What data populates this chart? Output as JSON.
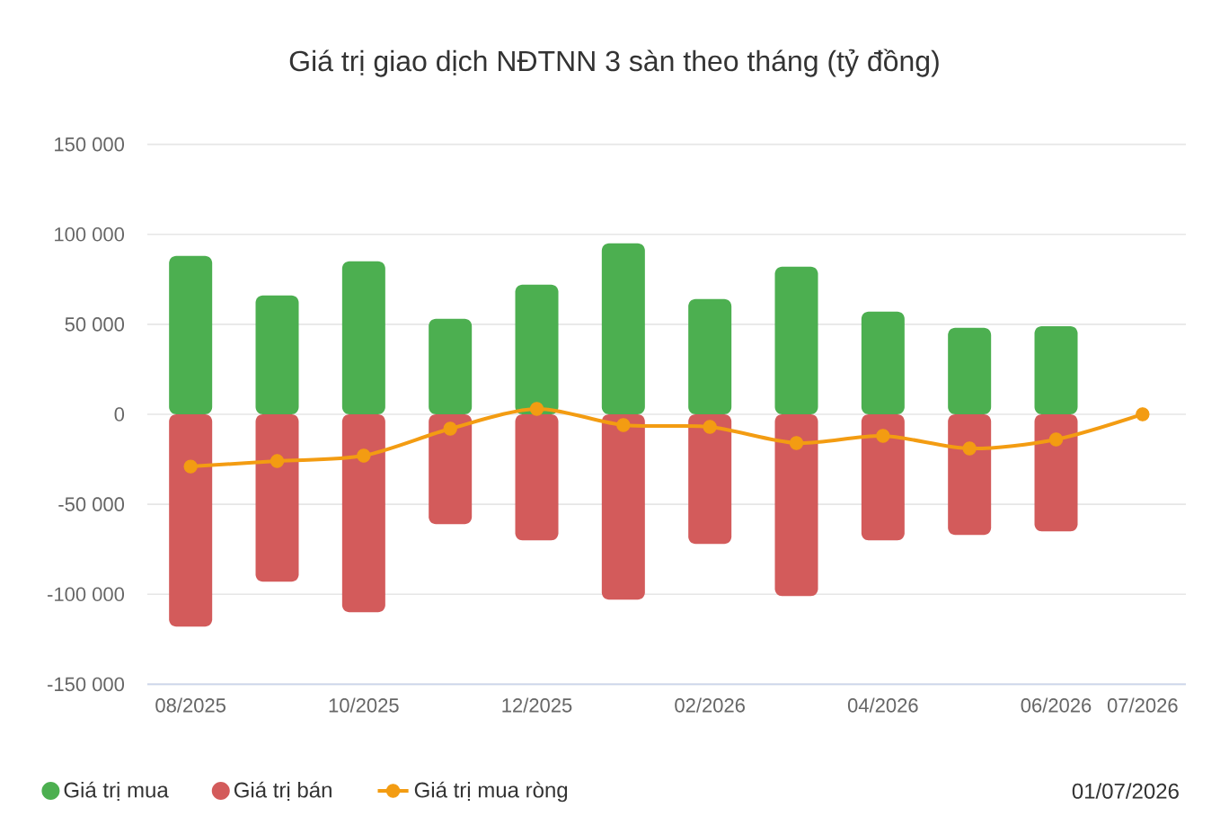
{
  "chart_data": {
    "type": "bar",
    "title": "Giá trị giao dịch NĐTNN 3 sàn theo tháng (tỷ đồng)",
    "categories": [
      "08/2025",
      null,
      "10/2025",
      null,
      "12/2025",
      null,
      "02/2026",
      null,
      "04/2026",
      null,
      "06/2026",
      "07/2026"
    ],
    "series": [
      {
        "name": "Giá trị mua",
        "color": "#4caf50",
        "values": [
          88000,
          66000,
          85000,
          53000,
          72000,
          95000,
          64000,
          82000,
          57000,
          48000,
          49000,
          null
        ]
      },
      {
        "name": "Giá trị bán",
        "color": "#d35b5b",
        "values": [
          -118000,
          -93000,
          -110000,
          -61000,
          -70000,
          -103000,
          -72000,
          -101000,
          -70000,
          -67000,
          -65000,
          null
        ]
      },
      {
        "name": "Giá trị mua ròng",
        "type": "line",
        "color": "#f39c12",
        "values": [
          -29000,
          -26000,
          -23000,
          -8000,
          3000,
          -6000,
          -7000,
          -16000,
          -12000,
          -19000,
          -14000,
          0
        ]
      }
    ],
    "stacked": true,
    "ylim": [
      -150000,
      150000
    ],
    "yticks": [
      {
        "value": -150000,
        "label": "-150 000"
      },
      {
        "value": -100000,
        "label": "-100 000"
      },
      {
        "value": -50000,
        "label": "-50 000"
      },
      0,
      {
        "value": 50000,
        "label": "50 000"
      },
      {
        "value": 100000,
        "label": "100 000"
      },
      {
        "value": 150000,
        "label": "150 000"
      }
    ],
    "grid": "y",
    "legend": "bottom left",
    "marker": "circle",
    "line_style": "solid",
    "annotations": [
      "01/07/2026"
    ]
  }
}
